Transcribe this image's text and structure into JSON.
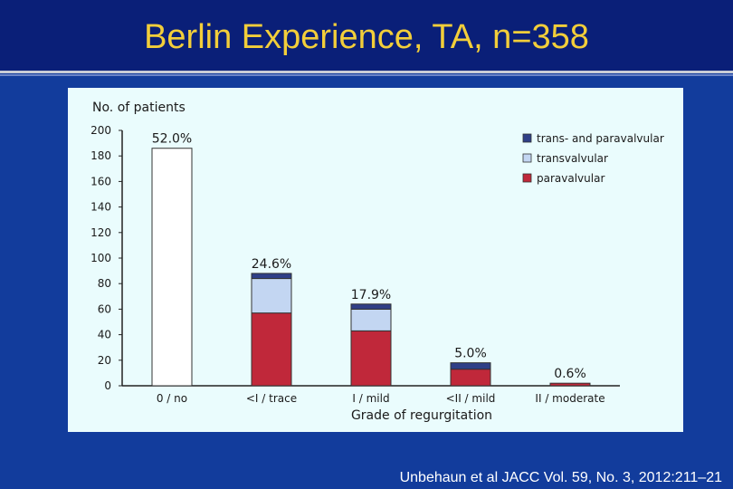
{
  "slide": {
    "title": "Berlin Experience, TA, n=358",
    "citation": "Unbehaun et al JACC Vol. 59, No. 3, 2012:211–21"
  },
  "colors": {
    "background": "#123c9c",
    "title_bar": "#0a1f78",
    "title_text": "#f2ce3a",
    "panel": "#eafcfd",
    "trans_and_paravalvular": "#2f3f87",
    "transvalvular": "#c3d6f2",
    "paravalvular": "#c0283a",
    "no_regurgitation": "#ffffff"
  },
  "chart_data": {
    "type": "bar",
    "stacked": true,
    "ylabel": "No. of patients",
    "xlabel": "Grade of regurgitation",
    "ylim": [
      0,
      200
    ],
    "yticks": [
      0,
      20,
      40,
      60,
      80,
      100,
      120,
      140,
      160,
      180,
      200
    ],
    "categories": [
      "0 / no",
      "<I / trace",
      "I / mild",
      "<II / mild",
      "II / moderate"
    ],
    "percent_labels": [
      "52.0%",
      "24.6%",
      "17.9%",
      "5.0%",
      "0.6%"
    ],
    "series": [
      {
        "name": "paravalvular",
        "color": "#c0283a",
        "values": [
          0,
          57,
          43,
          13,
          2
        ]
      },
      {
        "name": "transvalvular",
        "color": "#c3d6f2",
        "values": [
          0,
          27,
          17,
          0,
          0
        ]
      },
      {
        "name": "trans- and paravalvular",
        "color": "#2f3f87",
        "values": [
          0,
          4,
          4,
          5,
          0
        ]
      }
    ],
    "no_regurgitation_values": [
      186,
      0,
      0,
      0,
      0
    ],
    "legend_order": [
      "trans- and paravalvular",
      "transvalvular",
      "paravalvular"
    ],
    "legend_position": "top-right",
    "grid": false
  }
}
